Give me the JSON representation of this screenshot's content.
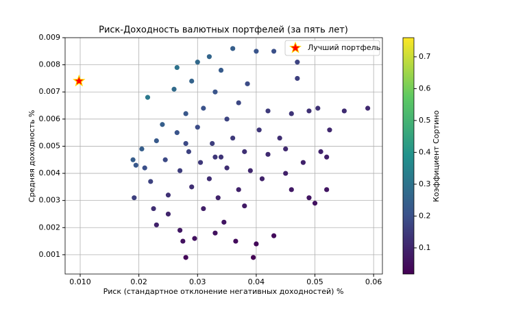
{
  "chart_data": {
    "type": "scatter",
    "title": "Риск-Доходность валютных портфелей (за пять лет)",
    "xlabel": "Риск (стандартное отклонение негативных доходностей) %",
    "ylabel": "Средняя доходность %",
    "xlim": [
      0.00743,
      0.0615
    ],
    "ylim": [
      0.00029,
      0.009
    ],
    "xticks": [
      {
        "value": 0.01,
        "label": "0.010"
      },
      0.02,
      0.03,
      0.04,
      0.05,
      0.06
    ],
    "yticks": [
      0.001,
      0.002,
      0.003,
      0.004,
      0.005,
      0.006,
      0.007,
      0.008,
      0.009
    ],
    "grid": true,
    "legend": "upper right",
    "colorbar": {
      "label": "Коэффициент Сортино",
      "clim": [
        0.018,
        0.76
      ],
      "ticks": [
        0.1,
        0.2,
        0.3,
        0.4,
        0.5,
        0.6,
        0.7
      ],
      "colormap": "viridis"
    },
    "points": {
      "x": [
        0.019,
        0.0195,
        0.0192,
        0.0205,
        0.021,
        0.0215,
        0.022,
        0.0225,
        0.023,
        0.023,
        0.024,
        0.0245,
        0.025,
        0.025,
        0.026,
        0.0265,
        0.0265,
        0.027,
        0.027,
        0.0275,
        0.028,
        0.028,
        0.0285,
        0.029,
        0.029,
        0.0295,
        0.03,
        0.03,
        0.0305,
        0.031,
        0.031,
        0.032,
        0.032,
        0.0325,
        0.033,
        0.033,
        0.0335,
        0.034,
        0.034,
        0.0345,
        0.035,
        0.035,
        0.036,
        0.036,
        0.0365,
        0.037,
        0.037,
        0.038,
        0.038,
        0.0385,
        0.039,
        0.0395,
        0.04,
        0.04,
        0.0405,
        0.041,
        0.042,
        0.042,
        0.043,
        0.043,
        0.044,
        0.045,
        0.046,
        0.046,
        0.047,
        0.047,
        0.048,
        0.049,
        0.049,
        0.05,
        0.0505,
        0.051,
        0.052,
        0.0525,
        0.052,
        0.055,
        0.059,
        0.045,
        0.033,
        0.028
      ],
      "values": [
        0.0045,
        0.0043,
        0.0031,
        0.0049,
        0.0042,
        0.0068,
        0.0037,
        0.0027,
        0.0052,
        0.0021,
        0.0058,
        0.0045,
        0.0032,
        0.0025,
        0.0071,
        0.0079,
        0.0055,
        0.0041,
        0.0019,
        0.0015,
        0.0009,
        0.0062,
        0.0048,
        0.0035,
        0.0074,
        0.0016,
        0.0081,
        0.0057,
        0.0044,
        0.0027,
        0.0064,
        0.0083,
        0.0038,
        0.0051,
        0.0018,
        0.007,
        0.0031,
        0.0046,
        0.0078,
        0.0022,
        0.006,
        0.0042,
        0.0086,
        0.0053,
        0.0015,
        0.0034,
        0.0066,
        0.0048,
        0.0028,
        0.0073,
        0.0041,
        0.0009,
        0.0085,
        0.0014,
        0.0056,
        0.0038,
        0.0063,
        0.0047,
        0.0017,
        0.0085,
        0.0053,
        0.004,
        0.0062,
        0.0034,
        0.0081,
        0.0075,
        0.0044,
        0.0063,
        0.0031,
        0.0029,
        0.0064,
        0.0048,
        0.0046,
        0.0056,
        0.0034,
        0.0063,
        0.0064,
        0.0049,
        0.0046,
        0.0051
      ],
      "sortino": [
        0.237,
        0.221,
        0.161,
        0.239,
        0.2,
        0.316,
        0.168,
        0.12,
        0.226,
        0.091,
        0.242,
        0.184,
        0.128,
        0.1,
        0.273,
        0.298,
        0.208,
        0.152,
        0.07,
        0.055,
        0.032,
        0.221,
        0.168,
        0.121,
        0.255,
        0.054,
        0.27,
        0.19,
        0.144,
        0.087,
        0.206,
        0.259,
        0.119,
        0.157,
        0.055,
        0.212,
        0.093,
        0.135,
        0.229,
        0.064,
        0.171,
        0.12,
        0.239,
        0.147,
        0.041,
        0.092,
        0.178,
        0.126,
        0.074,
        0.19,
        0.105,
        0.023,
        0.213,
        0.035,
        0.138,
        0.093,
        0.15,
        0.112,
        0.04,
        0.198,
        0.12,
        0.089,
        0.135,
        0.074,
        0.172,
        0.16,
        0.092,
        0.129,
        0.063,
        0.058,
        0.127,
        0.094,
        0.088,
        0.107,
        0.065,
        0.115,
        0.108,
        0.109,
        0.139,
        0.182
      ]
    },
    "highlight": {
      "name": "Лучший портфель",
      "x": 0.0098,
      "y": 0.0074,
      "color": "#ff0000",
      "edgecolor": "#ffd700"
    }
  }
}
